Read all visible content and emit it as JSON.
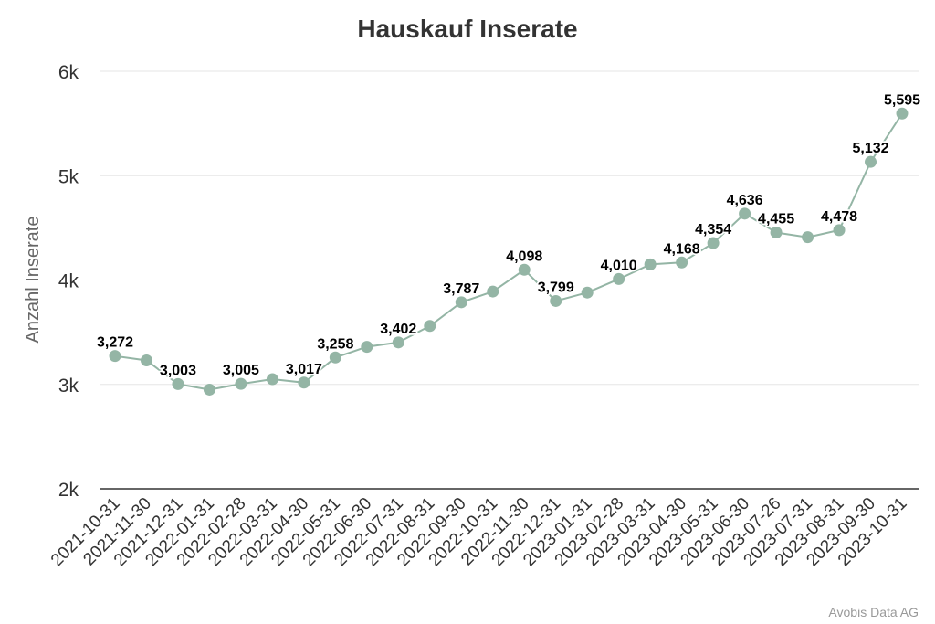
{
  "chart_data": {
    "type": "line",
    "title": "Hauskauf Inserate",
    "ylabel": "Anzahl Inserate",
    "xlabel": "",
    "ylim": [
      2000,
      6000
    ],
    "yticks": [
      2000,
      3000,
      4000,
      5000,
      6000
    ],
    "ytick_labels": [
      "2k",
      "3k",
      "4k",
      "5k",
      "6k"
    ],
    "grid": true,
    "legend": "none",
    "color": "#94b5a5",
    "categories": [
      "2021-10-31",
      "2021-11-30",
      "2021-12-31",
      "2022-01-31",
      "2022-02-28",
      "2022-03-31",
      "2022-04-30",
      "2022-05-31",
      "2022-06-30",
      "2022-07-31",
      "2022-08-31",
      "2022-09-30",
      "2022-10-31",
      "2022-11-30",
      "2022-12-31",
      "2023-01-31",
      "2023-02-28",
      "2023-03-31",
      "2023-04-30",
      "2023-05-31",
      "2023-06-30",
      "2023-07-26",
      "2023-07-31",
      "2023-08-31",
      "2023-09-30",
      "2023-10-31"
    ],
    "values": [
      3272,
      3230,
      3003,
      2950,
      3005,
      3050,
      3017,
      3258,
      3360,
      3402,
      3560,
      3787,
      3890,
      4098,
      3799,
      3880,
      4010,
      4150,
      4168,
      4354,
      4636,
      4455,
      4410,
      4478,
      5132,
      5595
    ],
    "data_labels": [
      "3,272",
      "",
      "3,003",
      "",
      "3,005",
      "",
      "3,017",
      "3,258",
      "",
      "3,402",
      "",
      "3,787",
      "",
      "4,098",
      "3,799",
      "",
      "4,010",
      "",
      "4,168",
      "4,354",
      "4,636",
      "4,455",
      "",
      "4,478",
      "5,132",
      "5,595"
    ]
  },
  "credit": "Avobis Data AG"
}
